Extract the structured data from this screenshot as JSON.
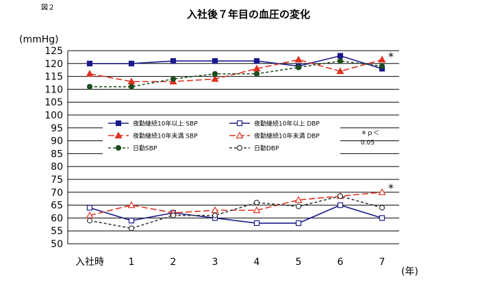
{
  "figure_label": "図２",
  "chart_data": {
    "type": "line",
    "title": "入社後７年目の血圧の変化",
    "ylabel": "(mmHg)",
    "xlabel": "(年)",
    "categories": [
      "入社時",
      "1",
      "2",
      "3",
      "4",
      "5",
      "6",
      "7"
    ],
    "ylim": [
      50,
      125
    ],
    "yticks": [
      50,
      55,
      60,
      65,
      70,
      75,
      80,
      85,
      90,
      95,
      100,
      105,
      110,
      115,
      120,
      125
    ],
    "grid": true,
    "legend_placement": "center-left",
    "series": [
      {
        "name": "夜勤継続10年以上 SBP",
        "values": [
          120,
          120,
          121,
          121,
          121,
          119,
          123,
          118
        ],
        "color": "#1a1a8c",
        "dash": "solid",
        "marker": "square",
        "filled": true
      },
      {
        "name": "夜勤継続10年以上 DBP",
        "values": [
          64,
          59,
          62,
          60,
          58,
          58,
          65,
          60
        ],
        "color": "#1a1a8c",
        "dash": "solid",
        "marker": "square",
        "filled": false
      },
      {
        "name": "夜勤継続10年未満 SBP",
        "values": [
          116,
          113,
          113,
          114,
          118,
          121.5,
          117,
          121.5
        ],
        "color": "#e03020",
        "dash": "long",
        "marker": "triangle",
        "filled": true
      },
      {
        "name": "夜勤継続10年未満 DBP",
        "values": [
          61,
          65,
          62,
          63,
          63,
          67,
          68.5,
          70
        ],
        "color": "#e03020",
        "dash": "long",
        "marker": "triangle",
        "filled": false
      },
      {
        "name": "日勤SBP",
        "values": [
          111,
          111,
          114,
          116,
          116,
          118.5,
          121,
          119
        ],
        "color": "#1e4d1e",
        "dash": "short",
        "marker": "circle",
        "filled": true
      },
      {
        "name": "日勤DBP",
        "values": [
          59,
          56,
          61,
          61,
          66,
          64.5,
          68.5,
          64
        ],
        "color": "#333333",
        "dash": "short",
        "marker": "circle",
        "filled": false
      }
    ],
    "annotations": {
      "star_sbp": "*",
      "star_dbp": "*",
      "significance_line1": "＊ｐ＜",
      "significance_line2": "0.05"
    }
  }
}
